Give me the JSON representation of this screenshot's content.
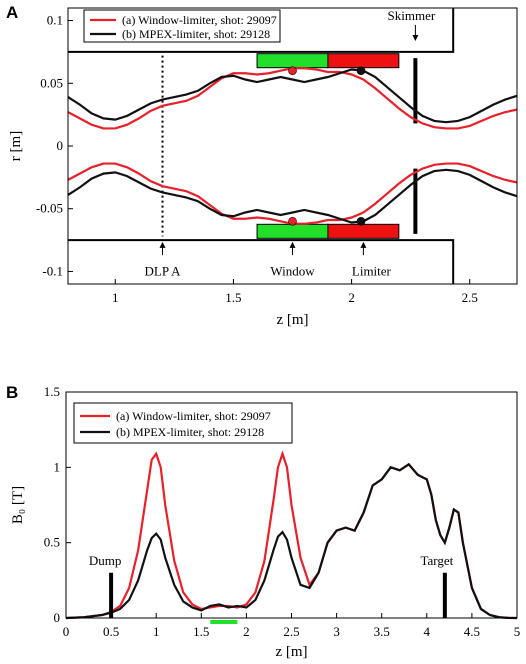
{
  "panel_a_letter": "A",
  "panel_b_letter": "B",
  "chart_data": [
    {
      "type": "line",
      "panel": "A",
      "xlabel": "z [m]",
      "ylabel": "r [m]",
      "xlim": [
        0.8,
        2.7
      ],
      "ylim": [
        -0.11,
        0.11
      ],
      "xticks": [
        1,
        1.5,
        2,
        2.5
      ],
      "yticks": [
        -0.1,
        -0.05,
        0,
        0.05,
        0.1
      ],
      "xtick_labels": [
        "1",
        "1.5",
        "2",
        "2.5"
      ],
      "ytick_labels": [
        "-0.1",
        "-0.05",
        "0",
        "0.05",
        "0.1"
      ],
      "grid": false,
      "legend_position": "top-left",
      "colors": {
        "red": "#e8202a",
        "black": "#111111",
        "window": "#22e02a",
        "limiter": "#ee1111"
      },
      "series": [
        {
          "name": "(a) Window-limiter, shot: 29097",
          "color": "#e8202a",
          "x": [
            0.8,
            0.85,
            0.9,
            0.95,
            1.0,
            1.05,
            1.1,
            1.15,
            1.2,
            1.25,
            1.3,
            1.35,
            1.4,
            1.45,
            1.5,
            1.55,
            1.6,
            1.65,
            1.7,
            1.75,
            1.8,
            1.85,
            1.9,
            1.95,
            2.0,
            2.05,
            2.1,
            2.15,
            2.2,
            2.25,
            2.3,
            2.35,
            2.4,
            2.45,
            2.5,
            2.55,
            2.6,
            2.65,
            2.7
          ],
          "y": [
            0.027,
            0.022,
            0.017,
            0.014,
            0.014,
            0.017,
            0.022,
            0.028,
            0.032,
            0.034,
            0.036,
            0.04,
            0.047,
            0.054,
            0.058,
            0.058,
            0.057,
            0.058,
            0.06,
            0.062,
            0.062,
            0.061,
            0.059,
            0.059,
            0.057,
            0.053,
            0.046,
            0.038,
            0.03,
            0.023,
            0.018,
            0.015,
            0.014,
            0.014,
            0.016,
            0.02,
            0.024,
            0.027,
            0.029
          ]
        },
        {
          "name": "(b) MPEX-limiter, shot: 29128",
          "color": "#111111",
          "x": [
            0.8,
            0.85,
            0.9,
            0.95,
            1.0,
            1.05,
            1.1,
            1.15,
            1.2,
            1.25,
            1.3,
            1.35,
            1.4,
            1.45,
            1.5,
            1.55,
            1.6,
            1.65,
            1.7,
            1.75,
            1.8,
            1.85,
            1.9,
            1.95,
            2.0,
            2.05,
            2.1,
            2.15,
            2.2,
            2.25,
            2.3,
            2.35,
            2.4,
            2.45,
            2.5,
            2.55,
            2.6,
            2.65,
            2.7
          ],
          "y": [
            0.039,
            0.033,
            0.026,
            0.022,
            0.021,
            0.024,
            0.029,
            0.034,
            0.037,
            0.039,
            0.041,
            0.044,
            0.05,
            0.055,
            0.056,
            0.053,
            0.051,
            0.053,
            0.055,
            0.053,
            0.051,
            0.053,
            0.055,
            0.058,
            0.061,
            0.06,
            0.055,
            0.047,
            0.039,
            0.031,
            0.024,
            0.02,
            0.019,
            0.02,
            0.023,
            0.028,
            0.033,
            0.037,
            0.04
          ]
        }
      ],
      "annotations": {
        "dlp": {
          "label": "DLP A",
          "z": 1.2
        },
        "window": {
          "label": "Window",
          "z_start": 1.6,
          "z_end": 1.9,
          "r": 0.068,
          "z_arrow": 1.75
        },
        "limiter": {
          "label": "Limiter",
          "z_start": 1.9,
          "z_end": 2.2,
          "r": 0.068,
          "z_arrow": 2.05
        },
        "skimmer": {
          "label": "Skimmer",
          "z": 2.27,
          "r_outer": 0.075,
          "r_inner": 0.018
        },
        "wall": {
          "r": 0.075,
          "z_end": 2.43
        },
        "markers": [
          {
            "z": 1.75,
            "r": 0.06,
            "color": "#e8202a"
          },
          {
            "z": 2.04,
            "r": 0.06,
            "color": "#111111"
          }
        ]
      }
    },
    {
      "type": "line",
      "panel": "B",
      "xlabel": "z [m]",
      "ylabel": "B₀ [T]",
      "xlim": [
        0,
        5
      ],
      "ylim": [
        0,
        1.5
      ],
      "xticks": [
        0,
        0.5,
        1,
        1.5,
        2,
        2.5,
        3,
        3.5,
        4,
        4.5,
        5
      ],
      "yticks": [
        0,
        0.5,
        1,
        1.5
      ],
      "xtick_labels": [
        "0",
        "0.5",
        "1",
        "1.5",
        "2",
        "2.5",
        "3",
        "3.5",
        "4",
        "4.5",
        "5"
      ],
      "ytick_labels": [
        "0",
        "0.5",
        "1",
        "1.5"
      ],
      "grid": false,
      "legend_position": "top-left",
      "series": [
        {
          "name": "(a) Window-limiter, shot: 29097",
          "color": "#e8202a",
          "x": [
            0.0,
            0.2,
            0.4,
            0.5,
            0.6,
            0.7,
            0.8,
            0.9,
            0.95,
            1.0,
            1.05,
            1.1,
            1.2,
            1.3,
            1.4,
            1.5,
            1.6,
            1.7,
            1.8,
            1.9,
            2.0,
            2.1,
            2.2,
            2.3,
            2.35,
            2.4,
            2.45,
            2.5,
            2.6,
            2.7,
            2.8,
            2.9,
            3.0,
            3.1,
            3.2,
            3.3,
            3.4,
            3.5,
            3.6,
            3.7,
            3.8,
            3.9,
            4.0,
            4.05,
            4.1,
            4.15,
            4.2,
            4.25,
            4.3,
            4.35,
            4.4,
            4.5,
            4.6,
            4.7,
            4.8,
            4.9,
            5.0
          ],
          "y": [
            0.0,
            0.005,
            0.02,
            0.04,
            0.08,
            0.2,
            0.45,
            0.85,
            1.05,
            1.09,
            1.0,
            0.75,
            0.38,
            0.17,
            0.09,
            0.06,
            0.07,
            0.08,
            0.08,
            0.07,
            0.09,
            0.17,
            0.38,
            0.78,
            1.0,
            1.09,
            1.0,
            0.75,
            0.4,
            0.22,
            0.3,
            0.5,
            0.58,
            0.6,
            0.58,
            0.7,
            0.88,
            0.92,
            1.0,
            0.98,
            1.02,
            0.95,
            0.92,
            0.82,
            0.65,
            0.55,
            0.5,
            0.6,
            0.72,
            0.7,
            0.5,
            0.2,
            0.06,
            0.02,
            0.005,
            0.001,
            0.0
          ]
        },
        {
          "name": "(b) MPEX-limiter, shot: 29128",
          "color": "#111111",
          "x": [
            0.0,
            0.2,
            0.4,
            0.5,
            0.6,
            0.7,
            0.8,
            0.9,
            0.95,
            1.0,
            1.05,
            1.1,
            1.2,
            1.3,
            1.4,
            1.5,
            1.6,
            1.7,
            1.8,
            1.9,
            2.0,
            2.1,
            2.2,
            2.3,
            2.35,
            2.4,
            2.45,
            2.5,
            2.6,
            2.7,
            2.8,
            2.9,
            3.0,
            3.1,
            3.2,
            3.3,
            3.4,
            3.5,
            3.6,
            3.7,
            3.8,
            3.9,
            4.0,
            4.05,
            4.1,
            4.15,
            4.2,
            4.25,
            4.3,
            4.35,
            4.4,
            4.5,
            4.6,
            4.7,
            4.8,
            4.9,
            5.0
          ],
          "y": [
            0.0,
            0.005,
            0.02,
            0.035,
            0.06,
            0.12,
            0.25,
            0.45,
            0.53,
            0.56,
            0.52,
            0.4,
            0.22,
            0.11,
            0.07,
            0.05,
            0.08,
            0.09,
            0.07,
            0.08,
            0.07,
            0.12,
            0.25,
            0.45,
            0.54,
            0.57,
            0.52,
            0.4,
            0.22,
            0.2,
            0.3,
            0.5,
            0.58,
            0.6,
            0.58,
            0.7,
            0.88,
            0.92,
            1.0,
            0.98,
            1.02,
            0.95,
            0.92,
            0.82,
            0.65,
            0.55,
            0.5,
            0.6,
            0.72,
            0.7,
            0.5,
            0.2,
            0.06,
            0.02,
            0.005,
            0.001,
            0.0
          ]
        }
      ],
      "annotations": {
        "dump": {
          "label": "Dump",
          "z": 0.5,
          "b_top": 0.3
        },
        "target": {
          "label": "Target",
          "z": 4.2,
          "b_top": 0.3
        },
        "window_bar": {
          "z_start": 1.6,
          "z_end": 1.9,
          "color": "#22e02a"
        }
      }
    }
  ]
}
